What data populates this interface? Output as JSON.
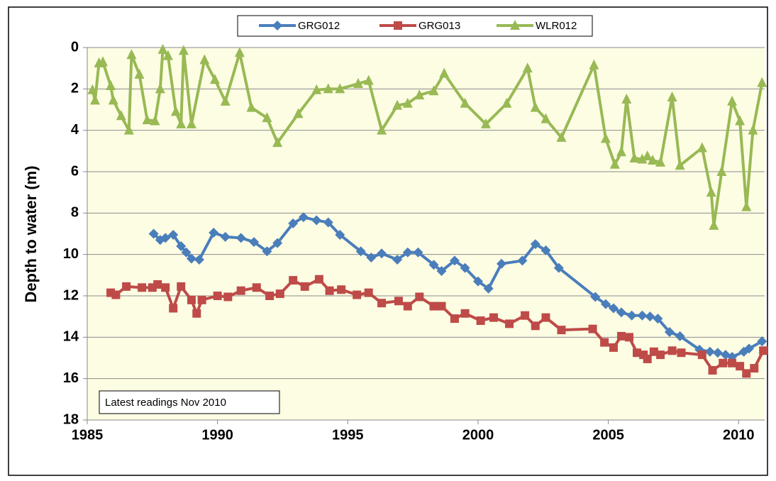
{
  "chart_data": {
    "type": "line",
    "y_title": "Depth to water  (m)",
    "annotation": "Latest readings  Nov 2010",
    "xlim": [
      1985,
      2011
    ],
    "xticks": [
      1985,
      1990,
      1995,
      2000,
      2005,
      2010
    ],
    "ylim": [
      0,
      18
    ],
    "yticks": [
      0,
      2,
      4,
      6,
      8,
      10,
      12,
      14,
      16,
      18
    ],
    "y_inverted": true,
    "grid": true,
    "legend": "top",
    "series": [
      {
        "name": "GRG012",
        "color": "#4a7ebb",
        "marker": "diamond",
        "x": [
          1987.55,
          1987.8,
          1988.0,
          1988.3,
          1988.6,
          1988.8,
          1989.0,
          1989.3,
          1989.85,
          1990.3,
          1990.9,
          1991.4,
          1991.9,
          1992.3,
          1992.9,
          1993.3,
          1993.8,
          1994.25,
          1994.7,
          1995.5,
          1995.9,
          1996.3,
          1996.9,
          1997.3,
          1997.7,
          1998.3,
          1998.6,
          1999.1,
          1999.5,
          2000.0,
          2000.4,
          2000.9,
          2001.7,
          2002.2,
          2002.6,
          2003.1,
          2004.5,
          2004.9,
          2005.2,
          2005.5,
          2005.9,
          2006.3,
          2006.6,
          2006.9,
          2007.35,
          2007.75,
          2008.5,
          2008.9,
          2009.2,
          2009.5,
          2009.75,
          2010.2,
          2010.4,
          2010.9
        ],
        "values": [
          9.0,
          9.3,
          9.2,
          9.05,
          9.6,
          9.9,
          10.2,
          10.25,
          8.95,
          9.15,
          9.2,
          9.4,
          9.85,
          9.45,
          8.5,
          8.2,
          8.35,
          8.45,
          9.05,
          9.85,
          10.15,
          9.95,
          10.25,
          9.9,
          9.9,
          10.5,
          10.8,
          10.3,
          10.65,
          11.3,
          11.65,
          10.45,
          10.3,
          9.5,
          9.8,
          10.65,
          12.05,
          12.4,
          12.6,
          12.8,
          12.95,
          12.95,
          13.0,
          13.1,
          13.75,
          13.95,
          14.6,
          14.7,
          14.75,
          14.85,
          14.95,
          14.7,
          14.55,
          14.2
        ]
      },
      {
        "name": "GRG013",
        "color": "#be4b48",
        "marker": "square",
        "x": [
          1985.9,
          1986.1,
          1986.5,
          1987.1,
          1987.5,
          1987.7,
          1988.0,
          1988.3,
          1988.6,
          1989.0,
          1989.2,
          1989.4,
          1990.0,
          1990.4,
          1990.9,
          1991.5,
          1992.0,
          1992.4,
          1992.9,
          1993.35,
          1993.9,
          1994.3,
          1994.75,
          1995.35,
          1995.8,
          1996.3,
          1996.95,
          1997.3,
          1997.75,
          1998.3,
          1998.6,
          1999.1,
          1999.5,
          2000.1,
          2000.6,
          2001.2,
          2001.8,
          2002.2,
          2002.6,
          2003.2,
          2004.4,
          2004.85,
          2005.2,
          2005.5,
          2005.8,
          2006.1,
          2006.35,
          2006.5,
          2006.75,
          2007.0,
          2007.45,
          2007.8,
          2008.6,
          2009.0,
          2009.4,
          2009.75,
          2010.05,
          2010.3,
          2010.6,
          2010.95
        ],
        "values": [
          11.85,
          11.95,
          11.55,
          11.6,
          11.6,
          11.45,
          11.6,
          12.6,
          11.55,
          12.2,
          12.85,
          12.2,
          12.0,
          12.05,
          11.75,
          11.6,
          12.0,
          11.9,
          11.25,
          11.55,
          11.2,
          11.75,
          11.7,
          11.95,
          11.85,
          12.35,
          12.25,
          12.5,
          12.05,
          12.5,
          12.5,
          13.1,
          12.85,
          13.2,
          13.05,
          13.35,
          12.95,
          13.45,
          13.05,
          13.65,
          13.6,
          14.25,
          14.5,
          13.95,
          14.0,
          14.75,
          14.85,
          15.05,
          14.7,
          14.85,
          14.65,
          14.75,
          14.85,
          15.6,
          15.25,
          15.25,
          15.4,
          15.75,
          15.5,
          14.65
        ]
      },
      {
        "name": "WLR012",
        "color": "#98b954",
        "marker": "triangle",
        "x": [
          1985.2,
          1985.3,
          1985.45,
          1985.6,
          1985.9,
          1986.0,
          1986.3,
          1986.6,
          1986.7,
          1987.0,
          1987.3,
          1987.6,
          1987.8,
          1987.9,
          1988.1,
          1988.4,
          1988.6,
          1988.7,
          1989.0,
          1989.5,
          1989.9,
          1990.3,
          1990.85,
          1991.3,
          1991.9,
          1992.3,
          1993.1,
          1993.8,
          1994.25,
          1994.7,
          1995.4,
          1995.8,
          1996.3,
          1996.9,
          1997.3,
          1997.75,
          1998.3,
          1998.7,
          1999.5,
          2000.3,
          2001.1,
          2001.9,
          2002.2,
          2002.6,
          2003.2,
          2004.45,
          2004.9,
          2005.25,
          2005.5,
          2005.7,
          2006.0,
          2006.3,
          2006.5,
          2006.7,
          2007.0,
          2007.45,
          2007.75,
          2008.6,
          2008.95,
          2009.05,
          2009.35,
          2009.75,
          2010.05,
          2010.3,
          2010.55,
          2010.9
        ],
        "values": [
          2.05,
          2.55,
          0.75,
          0.7,
          1.85,
          2.55,
          3.3,
          4.0,
          0.35,
          1.3,
          3.5,
          3.55,
          2.0,
          0.1,
          0.4,
          3.1,
          3.7,
          0.15,
          3.7,
          0.6,
          1.55,
          2.6,
          0.25,
          2.9,
          3.4,
          4.6,
          3.2,
          2.05,
          2.0,
          2.0,
          1.75,
          1.6,
          4.0,
          2.8,
          2.7,
          2.3,
          2.1,
          1.25,
          2.7,
          3.7,
          2.7,
          1.0,
          2.9,
          3.45,
          4.35,
          0.85,
          4.4,
          5.65,
          5.05,
          2.5,
          5.35,
          5.4,
          5.25,
          5.45,
          5.55,
          2.4,
          5.7,
          4.85,
          7.0,
          8.6,
          6.0,
          2.6,
          3.55,
          7.7,
          4.0,
          1.7
        ]
      }
    ]
  }
}
